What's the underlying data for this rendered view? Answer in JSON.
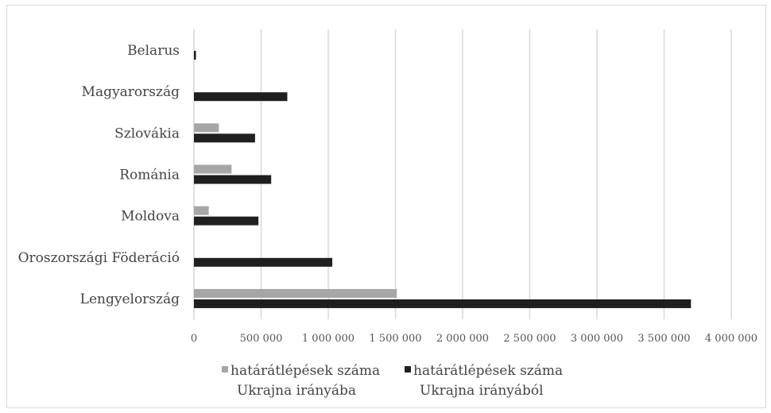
{
  "chart_data": {
    "type": "bar",
    "orientation": "horizontal",
    "categories": [
      "Lengyelország",
      "Oroszországi Föderáció",
      "Moldova",
      "Románia",
      "Szlovákia",
      "Magyarország",
      "Belarus"
    ],
    "series": [
      {
        "name_lines": [
          "határátlépések száma",
          "Ukrajna irányába"
        ],
        "color": "#a6a6a6",
        "values": [
          1510000,
          0,
          110000,
          280000,
          185000,
          0,
          0
        ]
      },
      {
        "name_lines": [
          "határátlépések száma",
          "Ukrajna irányából"
        ],
        "color": "#1f1f1f",
        "values": [
          3700000,
          1030000,
          480000,
          575000,
          455000,
          695000,
          15000
        ]
      }
    ],
    "xlim": [
      0,
      4000000
    ],
    "x_ticks": [
      0,
      500000,
      1000000,
      1500000,
      2000000,
      2500000,
      3000000,
      3500000,
      4000000
    ],
    "x_tick_labels": [
      "0",
      "500 000",
      "1 000 000",
      "1 500 000",
      "2 000 000",
      "2 500 000",
      "3 000 000",
      "3 500 000",
      "4 000 000"
    ],
    "grid": true,
    "legend_position": "bottom"
  },
  "colors": {
    "grid": "#d9d9d9",
    "axis": "#bfbfbf"
  }
}
